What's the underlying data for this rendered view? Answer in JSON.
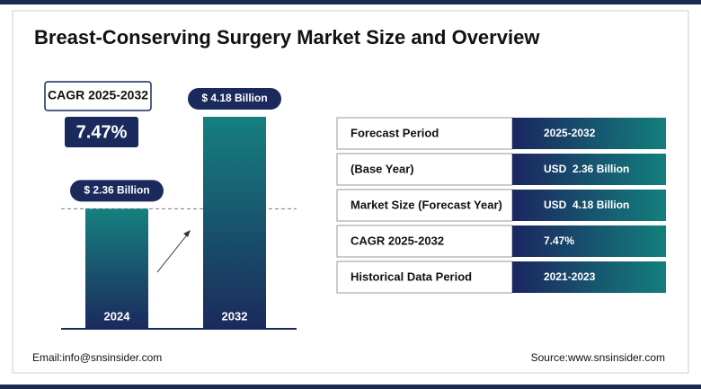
{
  "title": "Breast-Conserving Surgery Market Size and Overview",
  "cagr": {
    "label": "CAGR 2025-2032",
    "value": "7.47%"
  },
  "chart_data": {
    "type": "bar",
    "categories": [
      "2024",
      "2032"
    ],
    "values": [
      2.36,
      4.18
    ],
    "value_labels": [
      "$ 2.36 Billion",
      "$ 4.18 Billion"
    ]
  },
  "table": {
    "rows": [
      [
        "Forecast Period",
        "2025-2032"
      ],
      [
        "(Base Year)",
        "USD  2.36 Billion"
      ],
      [
        "Market Size (Forecast Year)",
        "USD  4.18 Billion"
      ],
      [
        "CAGR 2025-2032",
        "7.47%"
      ],
      [
        "Historical Data Period",
        "2021-2023"
      ]
    ]
  },
  "footer": {
    "email": "Email:info@snsinsider.com",
    "source": "Source:www.snsinsider.com"
  }
}
